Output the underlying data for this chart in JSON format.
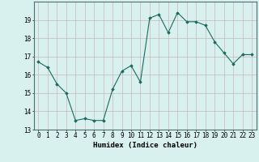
{
  "x": [
    0,
    1,
    2,
    3,
    4,
    5,
    6,
    7,
    8,
    9,
    10,
    11,
    12,
    13,
    14,
    15,
    16,
    17,
    18,
    19,
    20,
    21,
    22,
    23
  ],
  "y": [
    16.7,
    16.4,
    15.5,
    15.0,
    13.5,
    13.6,
    13.5,
    13.5,
    15.2,
    16.2,
    16.5,
    15.6,
    19.1,
    19.3,
    18.3,
    19.4,
    18.9,
    18.9,
    18.7,
    17.8,
    17.2,
    16.6,
    17.1,
    17.1
  ],
  "line_color": "#1a6b5e",
  "marker": "D",
  "marker_size": 1.8,
  "bg_color": "#d8f0ee",
  "grid_color": "#c8b8b8",
  "xlabel": "Humidex (Indice chaleur)",
  "ylim": [
    13,
    20
  ],
  "xlim": [
    -0.5,
    23.5
  ],
  "yticks": [
    13,
    14,
    15,
    16,
    17,
    18,
    19
  ],
  "xticks": [
    0,
    1,
    2,
    3,
    4,
    5,
    6,
    7,
    8,
    9,
    10,
    11,
    12,
    13,
    14,
    15,
    16,
    17,
    18,
    19,
    20,
    21,
    22,
    23
  ],
  "xtick_labels": [
    "0",
    "1",
    "2",
    "3",
    "4",
    "5",
    "6",
    "7",
    "8",
    "9",
    "10",
    "11",
    "12",
    "13",
    "14",
    "15",
    "16",
    "17",
    "18",
    "19",
    "20",
    "21",
    "22",
    "23"
  ],
  "tick_fontsize": 5.5,
  "label_fontsize": 6.5
}
